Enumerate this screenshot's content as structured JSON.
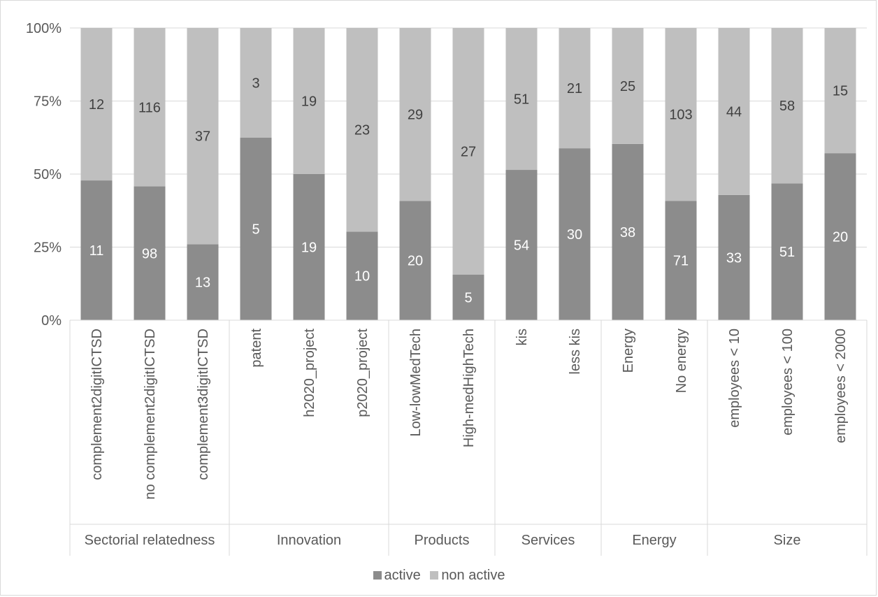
{
  "chart_data": {
    "type": "bar",
    "stacked": "percent",
    "title": "",
    "xlabel": "",
    "ylabel": "",
    "ylim": [
      0,
      100
    ],
    "yticks": [
      "0%",
      "25%",
      "50%",
      "75%",
      "100%"
    ],
    "grid": true,
    "legend_position": "bottom",
    "groups": [
      {
        "name": "Sectorial relatedness",
        "categories": [
          "complement2digitICTSD",
          "no complement2digitICTSD",
          "complement3digitICTSD"
        ]
      },
      {
        "name": "Innovation",
        "categories": [
          "patent",
          "h2020_project",
          "p2020_project"
        ]
      },
      {
        "name": "Products",
        "categories": [
          "Low-lowMedTech",
          "High-medHighTech"
        ]
      },
      {
        "name": "Services",
        "categories": [
          "kis",
          "less kis"
        ]
      },
      {
        "name": "Energy",
        "categories": [
          "Energy",
          "No energy"
        ]
      },
      {
        "name": "Size",
        "categories": [
          "employees < 10",
          "employees < 100",
          "employees < 2000"
        ]
      }
    ],
    "categories": [
      "complement2digitICTSD",
      "no complement2digitICTSD",
      "complement3digitICTSD",
      "patent",
      "h2020_project",
      "p2020_project",
      "Low-lowMedTech",
      "High-medHighTech",
      "kis",
      "less kis",
      "Energy",
      "No energy",
      "employees < 10",
      "employees < 100",
      "employees < 2000"
    ],
    "series": [
      {
        "name": "active",
        "color": "#8c8c8c",
        "values": [
          11,
          98,
          13,
          5,
          19,
          10,
          20,
          5,
          54,
          30,
          38,
          71,
          33,
          51,
          20
        ]
      },
      {
        "name": "non active",
        "color": "#bfbfbf",
        "values": [
          12,
          116,
          37,
          3,
          19,
          23,
          29,
          27,
          51,
          21,
          25,
          103,
          44,
          58,
          15
        ]
      }
    ]
  }
}
